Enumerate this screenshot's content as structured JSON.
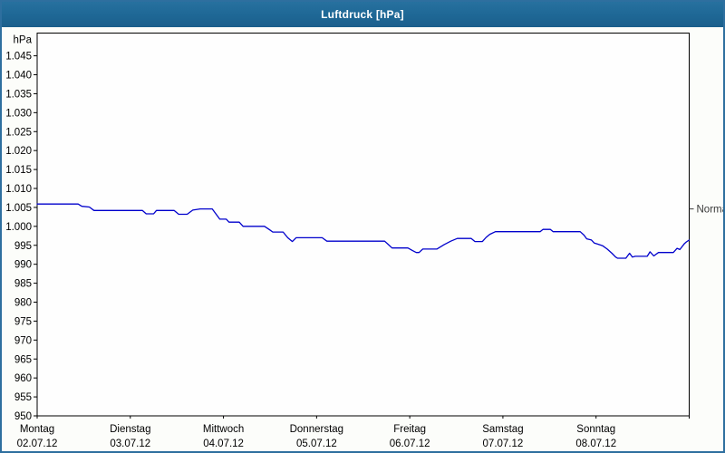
{
  "window": {
    "title": "Luftdruck [hPa]"
  },
  "colors": {
    "titlebar_blue": "#1e6795",
    "window_border": "#2e6f9f",
    "series_line": "#0000cc",
    "grid": "#000000",
    "axis_text": "#000000",
    "normal_text": "#3a3a3a",
    "plot_background": "#fefefe"
  },
  "chart_data": {
    "type": "line",
    "title": "Luftdruck [hPa]",
    "y_unit_label": "hPa",
    "ylim": [
      950,
      1051
    ],
    "grid": "dashed",
    "y_ticks": [
      {
        "value": 1045,
        "label": "1.045"
      },
      {
        "value": 1040,
        "label": "1.040"
      },
      {
        "value": 1035,
        "label": "1.035"
      },
      {
        "value": 1030,
        "label": "1.030"
      },
      {
        "value": 1025,
        "label": "1.025"
      },
      {
        "value": 1020,
        "label": "1.020"
      },
      {
        "value": 1015,
        "label": "1.015"
      },
      {
        "value": 1010,
        "label": "1.010"
      },
      {
        "value": 1005,
        "label": "1.005"
      },
      {
        "value": 1000,
        "label": "1.000"
      },
      {
        "value": 995,
        "label": "995"
      },
      {
        "value": 990,
        "label": "990"
      },
      {
        "value": 985,
        "label": "985"
      },
      {
        "value": 980,
        "label": "980"
      },
      {
        "value": 975,
        "label": "975"
      },
      {
        "value": 970,
        "label": "970"
      },
      {
        "value": 965,
        "label": "965"
      },
      {
        "value": 960,
        "label": "960"
      },
      {
        "value": 955,
        "label": "955"
      },
      {
        "value": 950,
        "label": "950"
      }
    ],
    "x_days": [
      {
        "label": "Montag",
        "date": "02.07.12"
      },
      {
        "label": "Dienstag",
        "date": "03.07.12"
      },
      {
        "label": "Mittwoch",
        "date": "04.07.12"
      },
      {
        "label": "Donnerstag",
        "date": "05.07.12"
      },
      {
        "label": "Freitag",
        "date": "06.07.12"
      },
      {
        "label": "Samstag",
        "date": "07.07.12"
      },
      {
        "label": "Sonntag",
        "date": "08.07.12"
      }
    ],
    "annotation": {
      "label": "Normal",
      "value": 1004.6
    },
    "series": [
      {
        "name": "Luftdruck",
        "unit": "hPa",
        "points": [
          [
            0.0,
            1005.9
          ],
          [
            0.44,
            1005.9
          ],
          [
            0.48,
            1005.3
          ],
          [
            0.56,
            1005.1
          ],
          [
            0.61,
            1004.2
          ],
          [
            1.13,
            1004.2
          ],
          [
            1.17,
            1003.3
          ],
          [
            1.25,
            1003.3
          ],
          [
            1.28,
            1004.2
          ],
          [
            1.47,
            1004.2
          ],
          [
            1.52,
            1003.2
          ],
          [
            1.61,
            1003.2
          ],
          [
            1.67,
            1004.3
          ],
          [
            1.75,
            1004.6
          ],
          [
            1.88,
            1004.6
          ],
          [
            1.94,
            1002.6
          ],
          [
            1.96,
            1001.9
          ],
          [
            2.03,
            1001.9
          ],
          [
            2.06,
            1001.1
          ],
          [
            2.17,
            1001.1
          ],
          [
            2.21,
            1000.0
          ],
          [
            2.44,
            1000.0
          ],
          [
            2.49,
            999.2
          ],
          [
            2.53,
            998.5
          ],
          [
            2.64,
            998.5
          ],
          [
            2.69,
            997.0
          ],
          [
            2.74,
            996.0
          ],
          [
            2.78,
            997.0
          ],
          [
            3.06,
            997.0
          ],
          [
            3.11,
            996.1
          ],
          [
            3.73,
            996.1
          ],
          [
            3.77,
            995.2
          ],
          [
            3.81,
            994.3
          ],
          [
            3.98,
            994.3
          ],
          [
            4.03,
            993.6
          ],
          [
            4.07,
            993.1
          ],
          [
            4.1,
            993.1
          ],
          [
            4.14,
            994.0
          ],
          [
            4.29,
            994.0
          ],
          [
            4.37,
            995.2
          ],
          [
            4.44,
            996.1
          ],
          [
            4.51,
            996.8
          ],
          [
            4.66,
            996.8
          ],
          [
            4.7,
            996.0
          ],
          [
            4.78,
            996.0
          ],
          [
            4.82,
            997.1
          ],
          [
            4.86,
            997.9
          ],
          [
            4.92,
            998.6
          ],
          [
            5.4,
            998.6
          ],
          [
            5.43,
            999.2
          ],
          [
            5.51,
            999.2
          ],
          [
            5.54,
            998.6
          ],
          [
            5.83,
            998.6
          ],
          [
            5.87,
            997.7
          ],
          [
            5.9,
            996.7
          ],
          [
            5.95,
            996.4
          ],
          [
            5.98,
            995.6
          ],
          [
            6.02,
            995.3
          ],
          [
            6.07,
            994.9
          ],
          [
            6.12,
            994.0
          ],
          [
            6.17,
            992.9
          ],
          [
            6.21,
            991.9
          ],
          [
            6.23,
            991.6
          ],
          [
            6.32,
            991.6
          ],
          [
            6.36,
            992.9
          ],
          [
            6.39,
            991.9
          ],
          [
            6.42,
            992.1
          ],
          [
            6.55,
            992.1
          ],
          [
            6.58,
            993.3
          ],
          [
            6.62,
            992.2
          ],
          [
            6.67,
            993.1
          ],
          [
            6.83,
            993.1
          ],
          [
            6.87,
            994.2
          ],
          [
            6.9,
            993.9
          ],
          [
            6.95,
            995.5
          ],
          [
            6.97,
            995.9
          ],
          [
            7.0,
            996.4
          ]
        ]
      }
    ]
  }
}
